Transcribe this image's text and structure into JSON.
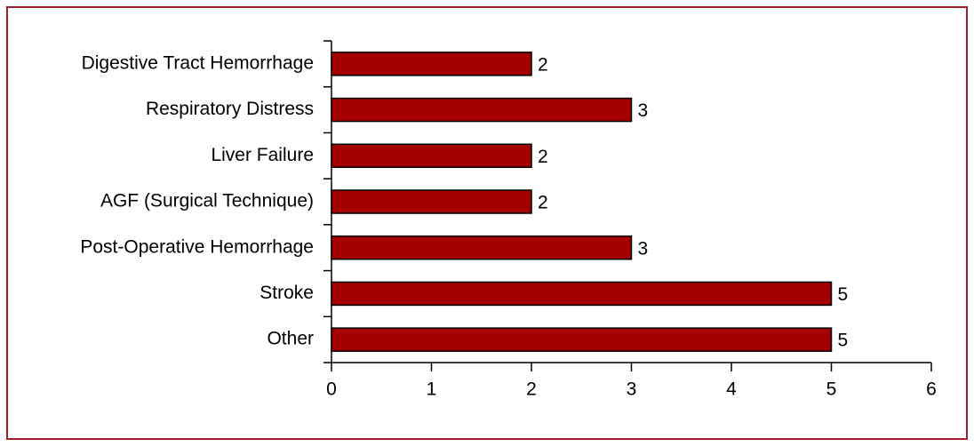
{
  "chart_data": {
    "type": "bar",
    "orientation": "horizontal",
    "categories": [
      "Digestive Tract Hemorrhage",
      "Respiratory Distress",
      "Liver Failure",
      "AGF (Surgical Technique)",
      "Post-Operative Hemorrhage",
      "Stroke",
      "Other"
    ],
    "values": [
      2,
      3,
      2,
      2,
      3,
      5,
      5
    ],
    "color": "#a50000",
    "xlim": [
      0,
      6
    ],
    "xticks": [
      0,
      1,
      2,
      3,
      4,
      5,
      6
    ],
    "grid": false
  }
}
